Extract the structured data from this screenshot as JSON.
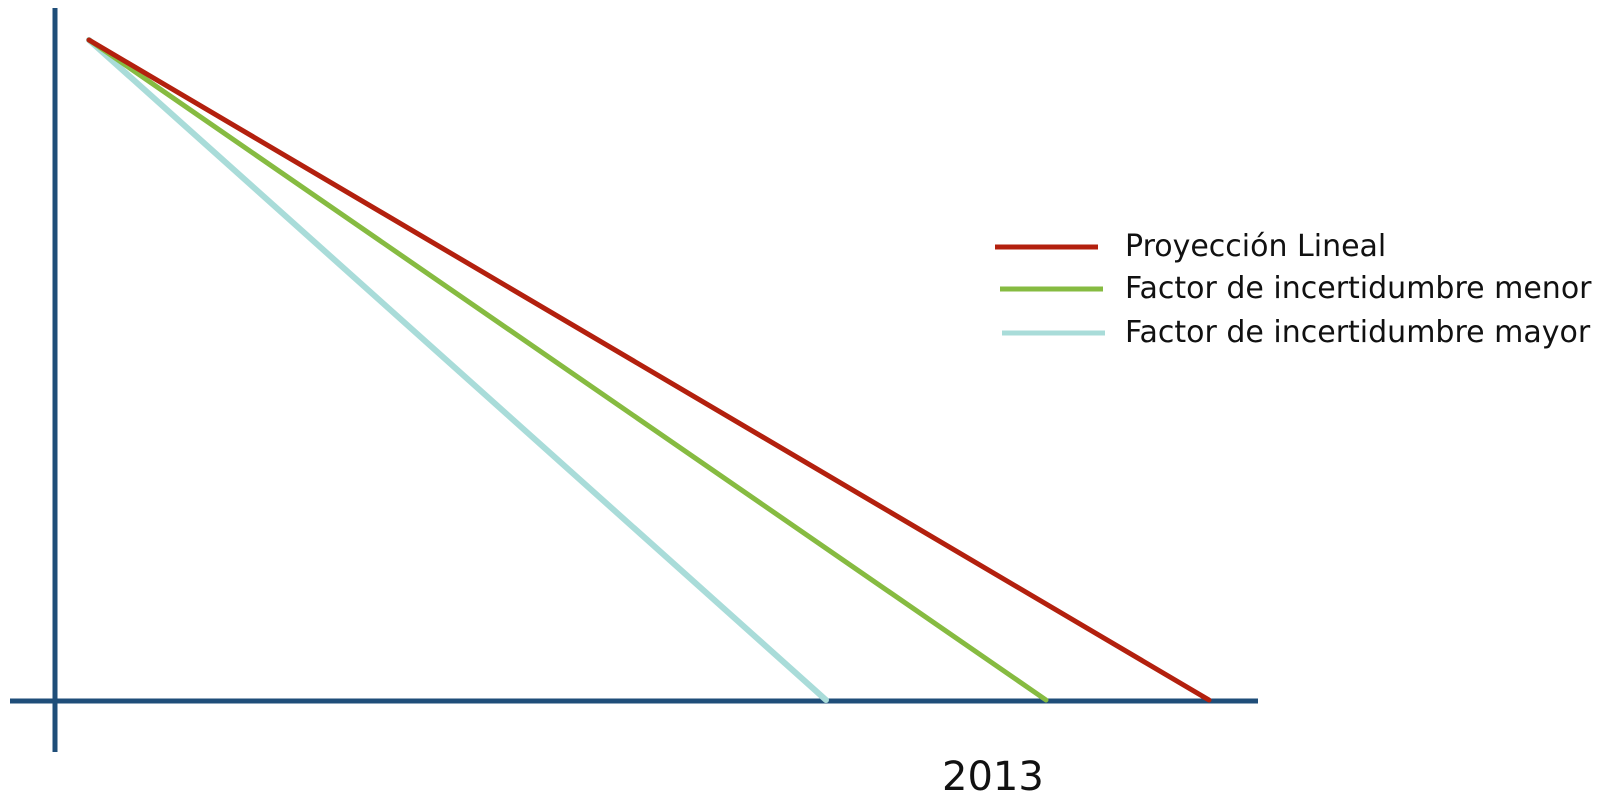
{
  "diagram": {
    "axis_color": "#1f4e79",
    "x_tick_label": "2013",
    "series": [
      {
        "name": "Proyección Lineal",
        "color": "#b3200e"
      },
      {
        "name": "Factor de incertidumbre menor",
        "color": "#86bb41"
      },
      {
        "name": "Factor de incertidumbre mayor",
        "color": "#a9dcd9"
      }
    ]
  }
}
